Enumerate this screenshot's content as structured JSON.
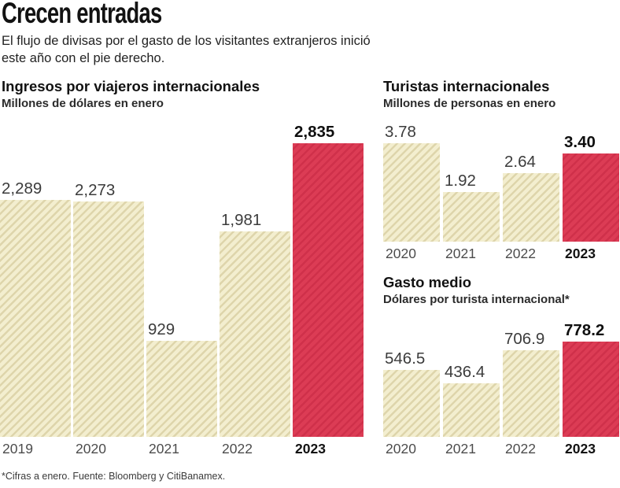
{
  "header": {
    "title": "Crecen entradas",
    "subtitle_line1": "El flujo de divisas por el gasto de los visitantes extranjeros inició",
    "subtitle_line2": "este año con el pie derecho."
  },
  "footer": {
    "note": "*Cifras a enero. Fuente: Bloomberg y CitiBanamex."
  },
  "colors": {
    "bar_fill": "#f3eecf",
    "bar_hatch": "#ded5ab",
    "highlight_fill": "#dc3c55",
    "highlight_hatch": "#cf304a",
    "text_dark": "#121212",
    "text_value": "#3c3c3c",
    "text_year": "#4c4c4c"
  },
  "chart_data": [
    {
      "type": "bar",
      "title": "Ingresos por viajeros internacionales",
      "subtitle": "Millones de dólares en enero",
      "categories": [
        "2019",
        "2020",
        "2021",
        "2022",
        "2023"
      ],
      "values": [
        2289,
        2273,
        929,
        1981,
        2835
      ],
      "value_labels": [
        "2,289",
        "2,273",
        "929",
        "1,981",
        "2,835"
      ],
      "highlight_index": 4,
      "ylim": [
        0,
        2835
      ],
      "grid": false,
      "legend": "none",
      "value_label_position": "above-bar-left"
    },
    {
      "type": "bar",
      "title": "Turistas internacionales",
      "subtitle": "Millones de personas en enero",
      "categories": [
        "2020",
        "2021",
        "2022",
        "2023"
      ],
      "values": [
        3.78,
        1.92,
        2.64,
        3.4
      ],
      "value_labels": [
        "3.78",
        "1.92",
        "2.64",
        "3.40"
      ],
      "highlight_index": 3,
      "ylim": [
        0,
        3.78
      ],
      "grid": false,
      "legend": "none",
      "value_label_position": "above-bar-left"
    },
    {
      "type": "bar",
      "title": "Gasto medio",
      "subtitle": "Dólares por turista internacional*",
      "categories": [
        "2020",
        "2021",
        "2022",
        "2023"
      ],
      "values": [
        546.5,
        436.4,
        706.9,
        778.2
      ],
      "value_labels": [
        "546.5",
        "436.4",
        "706.9",
        "778.2"
      ],
      "highlight_index": 3,
      "ylim": [
        0,
        778.2
      ],
      "grid": false,
      "legend": "none",
      "value_label_position": "above-bar-left"
    }
  ]
}
